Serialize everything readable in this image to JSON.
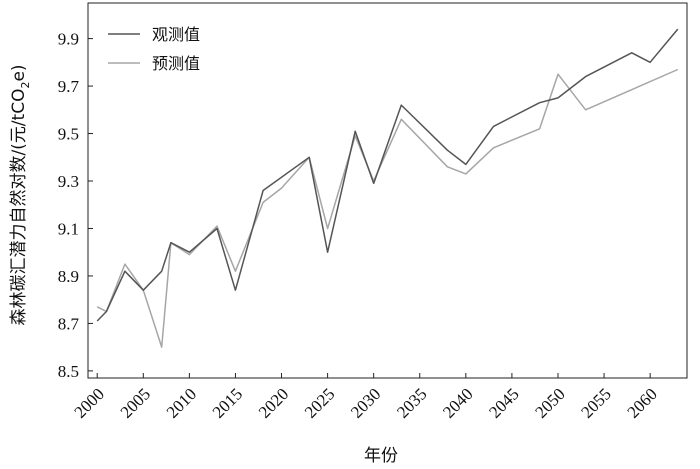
{
  "chart_data": {
    "type": "line",
    "xlabel": "年份",
    "ylabel_main": "森林碳汇潜力自然对数/(元/tCO",
    "ylabel_sub": "2",
    "ylabel_tail": "e)",
    "xlim": [
      1999,
      2064
    ],
    "ylim": [
      8.47,
      10.05
    ],
    "x_ticks": [
      2000,
      2005,
      2010,
      2015,
      2020,
      2025,
      2030,
      2035,
      2040,
      2045,
      2050,
      2055,
      2060
    ],
    "y_ticks": [
      "8.5",
      "8.7",
      "8.9",
      "9.1",
      "9.3",
      "9.5",
      "9.7",
      "9.9"
    ],
    "grid": false,
    "legend_position": "top-left",
    "series": [
      {
        "name": "观测值",
        "color": "#555555",
        "x": [
          2000,
          2001,
          2003,
          2005,
          2007,
          2008,
          2010,
          2013,
          2015,
          2018,
          2023,
          2025,
          2028,
          2030,
          2033,
          2038,
          2040,
          2043,
          2048,
          2050,
          2053,
          2058,
          2060,
          2063
        ],
        "y": [
          8.71,
          8.75,
          8.92,
          8.84,
          8.92,
          9.04,
          9.0,
          9.1,
          8.84,
          9.26,
          9.4,
          9.0,
          9.51,
          9.29,
          9.62,
          9.43,
          9.37,
          9.53,
          9.63,
          9.65,
          9.74,
          9.84,
          9.8,
          9.94
        ]
      },
      {
        "name": "预测值",
        "color": "#a6a6a6",
        "x": [
          2000,
          2001,
          2003,
          2005,
          2007,
          2008,
          2010,
          2013,
          2015,
          2018,
          2020,
          2023,
          2025,
          2028,
          2030,
          2033,
          2038,
          2040,
          2043,
          2048,
          2050,
          2053,
          2063
        ],
        "y": [
          8.77,
          8.75,
          8.95,
          8.84,
          8.6,
          9.04,
          8.99,
          9.11,
          8.92,
          9.21,
          9.27,
          9.4,
          9.1,
          9.49,
          9.3,
          9.56,
          9.36,
          9.33,
          9.44,
          9.52,
          9.75,
          9.6,
          9.77
        ]
      }
    ]
  }
}
